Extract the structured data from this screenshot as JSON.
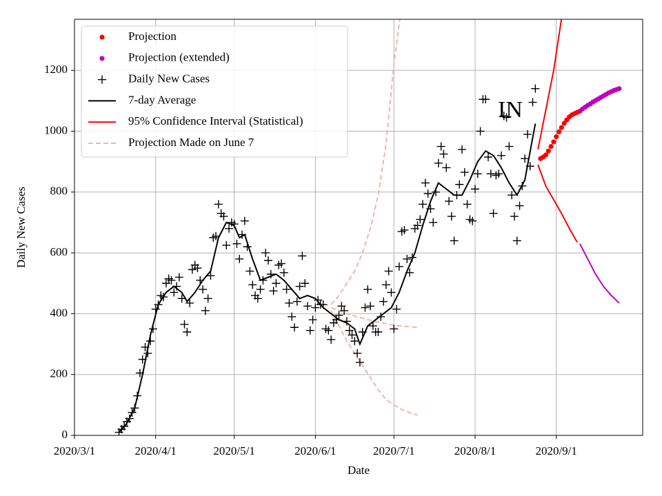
{
  "chart_data": {
    "type": "line",
    "xlabel": "Date",
    "ylabel": "Daily New Cases",
    "annotation": "IN",
    "xlim": [
      "2020-03-01",
      "2020-10-04"
    ],
    "ylim": [
      0,
      1368
    ],
    "xticks": [
      {
        "value": "2020-03-01",
        "label": "2020/3/1"
      },
      {
        "value": "2020-04-01",
        "label": "2020/4/1"
      },
      {
        "value": "2020-05-01",
        "label": "2020/5/1"
      },
      {
        "value": "2020-06-01",
        "label": "2020/6/1"
      },
      {
        "value": "2020-07-01",
        "label": "2020/7/1"
      },
      {
        "value": "2020-08-01",
        "label": "2020/8/1"
      },
      {
        "value": "2020-09-01",
        "label": "2020/9/1"
      }
    ],
    "yticks": [
      0,
      200,
      400,
      600,
      800,
      1000,
      1200
    ],
    "grid": true,
    "legend": "upper left",
    "series": [
      {
        "name": "Projection",
        "color": "#ff0000",
        "marker": "dot",
        "x": [
          "2020-08-26",
          "2020-08-27",
          "2020-08-28",
          "2020-08-29",
          "2020-08-30",
          "2020-08-31",
          "2020-09-01",
          "2020-09-02",
          "2020-09-03",
          "2020-09-04",
          "2020-09-05",
          "2020-09-06",
          "2020-09-07",
          "2020-09-08",
          "2020-09-09"
        ],
        "values": [
          910,
          915,
          922,
          935,
          950,
          965,
          982,
          998,
          1012,
          1026,
          1037,
          1047,
          1054,
          1058,
          1062
        ]
      },
      {
        "name": "Projection (extended)",
        "color": "#bf00bf",
        "marker": "dot",
        "x": [
          "2020-09-10",
          "2020-09-11",
          "2020-09-12",
          "2020-09-13",
          "2020-09-14",
          "2020-09-15",
          "2020-09-16",
          "2020-09-17",
          "2020-09-18",
          "2020-09-19",
          "2020-09-20",
          "2020-09-21",
          "2020-09-22",
          "2020-09-23",
          "2020-09-24",
          "2020-09-25"
        ],
        "values": [
          1066,
          1073,
          1079,
          1085,
          1090,
          1096,
          1101,
          1106,
          1111,
          1116,
          1121,
          1126,
          1130,
          1134,
          1137,
          1140
        ]
      },
      {
        "name": "Daily New Cases",
        "color": "#000000",
        "marker": "plus",
        "x": [
          "2020-03-18",
          "2020-03-19",
          "2020-03-20",
          "2020-03-21",
          "2020-03-22",
          "2020-03-23",
          "2020-03-24",
          "2020-03-25",
          "2020-03-26",
          "2020-03-27",
          "2020-03-28",
          "2020-03-29",
          "2020-03-30",
          "2020-03-31",
          "2020-04-01",
          "2020-04-02",
          "2020-04-03",
          "2020-04-04",
          "2020-04-05",
          "2020-04-06",
          "2020-04-07",
          "2020-04-08",
          "2020-04-09",
          "2020-04-10",
          "2020-04-11",
          "2020-04-12",
          "2020-04-13",
          "2020-04-14",
          "2020-04-15",
          "2020-04-16",
          "2020-04-17",
          "2020-04-18",
          "2020-04-19",
          "2020-04-20",
          "2020-04-21",
          "2020-04-22",
          "2020-04-23",
          "2020-04-24",
          "2020-04-25",
          "2020-04-26",
          "2020-04-27",
          "2020-04-28",
          "2020-04-29",
          "2020-04-30",
          "2020-05-01",
          "2020-05-02",
          "2020-05-03",
          "2020-05-04",
          "2020-05-05",
          "2020-05-06",
          "2020-05-07",
          "2020-05-08",
          "2020-05-09",
          "2020-05-10",
          "2020-05-11",
          "2020-05-12",
          "2020-05-13",
          "2020-05-14",
          "2020-05-15",
          "2020-05-16",
          "2020-05-17",
          "2020-05-18",
          "2020-05-19",
          "2020-05-20",
          "2020-05-21",
          "2020-05-22",
          "2020-05-23",
          "2020-05-24",
          "2020-05-25",
          "2020-05-26",
          "2020-05-27",
          "2020-05-28",
          "2020-05-29",
          "2020-05-30",
          "2020-05-31",
          "2020-06-01",
          "2020-06-02",
          "2020-06-03",
          "2020-06-04",
          "2020-06-05",
          "2020-06-06",
          "2020-06-07",
          "2020-06-08",
          "2020-06-09",
          "2020-06-10",
          "2020-06-11",
          "2020-06-12",
          "2020-06-13",
          "2020-06-14",
          "2020-06-15",
          "2020-06-16",
          "2020-06-17",
          "2020-06-18",
          "2020-06-19",
          "2020-06-20",
          "2020-06-21",
          "2020-06-22",
          "2020-06-23",
          "2020-06-24",
          "2020-06-25",
          "2020-06-26",
          "2020-06-27",
          "2020-06-28",
          "2020-06-29",
          "2020-06-30",
          "2020-07-01",
          "2020-07-02",
          "2020-07-03",
          "2020-07-04",
          "2020-07-05",
          "2020-07-06",
          "2020-07-07",
          "2020-07-08",
          "2020-07-09",
          "2020-07-10",
          "2020-07-11",
          "2020-07-12",
          "2020-07-13",
          "2020-07-14",
          "2020-07-15",
          "2020-07-16",
          "2020-07-17",
          "2020-07-18",
          "2020-07-19",
          "2020-07-20",
          "2020-07-21",
          "2020-07-22",
          "2020-07-23",
          "2020-07-24",
          "2020-07-25",
          "2020-07-26",
          "2020-07-27",
          "2020-07-28",
          "2020-07-29",
          "2020-07-30",
          "2020-07-31",
          "2020-08-01",
          "2020-08-02",
          "2020-08-03",
          "2020-08-04",
          "2020-08-05",
          "2020-08-06",
          "2020-08-07",
          "2020-08-08",
          "2020-08-09",
          "2020-08-10",
          "2020-08-11",
          "2020-08-12",
          "2020-08-13",
          "2020-08-14",
          "2020-08-15",
          "2020-08-16",
          "2020-08-17",
          "2020-08-18",
          "2020-08-19",
          "2020-08-20",
          "2020-08-21",
          "2020-08-22",
          "2020-08-23",
          "2020-08-24"
        ],
        "values": [
          10,
          20,
          30,
          45,
          55,
          75,
          90,
          130,
          205,
          250,
          290,
          270,
          310,
          350,
          415,
          430,
          460,
          455,
          500,
          515,
          510,
          470,
          490,
          520,
          450,
          365,
          340,
          435,
          545,
          560,
          550,
          510,
          480,
          410,
          450,
          525,
          650,
          655,
          760,
          730,
          720,
          625,
          680,
          700,
          695,
          630,
          580,
          660,
          705,
          620,
          540,
          495,
          460,
          450,
          480,
          510,
          600,
          575,
          530,
          475,
          500,
          560,
          565,
          535,
          480,
          435,
          390,
          355,
          440,
          490,
          590,
          500,
          425,
          345,
          380,
          420,
          445,
          430,
          430,
          350,
          345,
          315,
          370,
          380,
          395,
          425,
          410,
          375,
          345,
          330,
          310,
          270,
          240,
          340,
          420,
          480,
          425,
          360,
          340,
          340,
          390,
          440,
          495,
          540,
          470,
          350,
          415,
          555,
          670,
          675,
          580,
          535,
          585,
          680,
          690,
          710,
          760,
          830,
          795,
          745,
          700,
          800,
          895,
          950,
          925,
          880,
          770,
          720,
          640,
          790,
          825,
          940,
          865,
          760,
          710,
          705,
          810,
          860,
          1000,
          1105,
          1105,
          915,
          860,
          730,
          855,
          860,
          920,
          1050,
          1045,
          950,
          790,
          720,
          640,
          755,
          820,
          910,
          990,
          885,
          1095,
          1140
        ]
      },
      {
        "name": "7-day Average",
        "color": "#000000",
        "x": [
          "2020-03-18",
          "2020-03-21",
          "2020-03-24",
          "2020-03-27",
          "2020-03-30",
          "2020-04-02",
          "2020-04-05",
          "2020-04-08",
          "2020-04-11",
          "2020-04-13",
          "2020-04-16",
          "2020-04-19",
          "2020-04-22",
          "2020-04-25",
          "2020-04-28",
          "2020-05-01",
          "2020-05-03",
          "2020-05-05",
          "2020-05-08",
          "2020-05-11",
          "2020-05-14",
          "2020-05-17",
          "2020-05-20",
          "2020-05-23",
          "2020-05-26",
          "2020-05-29",
          "2020-06-01",
          "2020-06-04",
          "2020-06-07",
          "2020-06-10",
          "2020-06-13",
          "2020-06-16",
          "2020-06-18",
          "2020-06-21",
          "2020-06-24",
          "2020-06-27",
          "2020-06-30",
          "2020-07-03",
          "2020-07-06",
          "2020-07-09",
          "2020-07-12",
          "2020-07-15",
          "2020-07-18",
          "2020-07-21",
          "2020-07-24",
          "2020-07-27",
          "2020-07-30",
          "2020-08-02",
          "2020-08-05",
          "2020-08-08",
          "2020-08-11",
          "2020-08-14",
          "2020-08-17",
          "2020-08-20",
          "2020-08-24"
        ],
        "values": [
          10,
          40,
          90,
          200,
          330,
          430,
          470,
          490,
          470,
          440,
          470,
          510,
          540,
          650,
          700,
          690,
          650,
          660,
          580,
          510,
          520,
          530,
          510,
          480,
          450,
          460,
          450,
          420,
          400,
          380,
          370,
          350,
          300,
          360,
          380,
          400,
          420,
          470,
          540,
          600,
          690,
          770,
          830,
          810,
          790,
          790,
          840,
          900,
          935,
          920,
          880,
          830,
          790,
          840,
          1025
        ]
      },
      {
        "name": "95% Confidence Interval (Statistical)",
        "color": "#ff0000",
        "lines": [
          {
            "x": [
              "2020-08-25",
              "2020-08-28",
              "2020-08-31",
              "2020-09-03"
            ],
            "values": [
              940,
              1070,
              1200,
              1370
            ]
          },
          {
            "x": [
              "2020-08-25",
              "2020-08-28",
              "2020-08-31",
              "2020-09-03",
              "2020-09-06",
              "2020-09-09"
            ],
            "values": [
              890,
              820,
              775,
              730,
              680,
              635
            ]
          }
        ]
      },
      {
        "name": "Projection Made on June 7",
        "color": "#f8b0b0",
        "style": "dashed",
        "lines": [
          {
            "x": [
              "2020-06-07",
              "2020-06-10",
              "2020-06-13",
              "2020-06-16",
              "2020-06-19",
              "2020-06-22",
              "2020-06-25",
              "2020-06-28",
              "2020-07-01",
              "2020-07-04"
            ],
            "values": [
              430,
              460,
              500,
              540,
              600,
              680,
              790,
              960,
              1220,
              1420
            ]
          },
          {
            "x": [
              "2020-06-07",
              "2020-06-13",
              "2020-06-19",
              "2020-06-25",
              "2020-07-01",
              "2020-07-07",
              "2020-07-10"
            ],
            "values": [
              420,
              400,
              385,
              372,
              362,
              357,
              355
            ]
          },
          {
            "x": [
              "2020-06-07",
              "2020-06-10",
              "2020-06-13",
              "2020-06-16",
              "2020-06-19",
              "2020-06-22",
              "2020-06-25",
              "2020-06-28",
              "2020-07-01",
              "2020-07-04",
              "2020-07-07",
              "2020-07-10"
            ],
            "values": [
              410,
              360,
              310,
              270,
              230,
              190,
              150,
              118,
              100,
              85,
              75,
              67
            ]
          }
        ]
      },
      {
        "color": "#bf00bf",
        "lines": [
          {
            "x": [
              "2020-09-10",
              "2020-09-13",
              "2020-09-16",
              "2020-09-19",
              "2020-09-22",
              "2020-09-25"
            ],
            "values": [
              630,
              580,
              530,
              490,
              460,
              435
            ]
          }
        ]
      }
    ]
  }
}
